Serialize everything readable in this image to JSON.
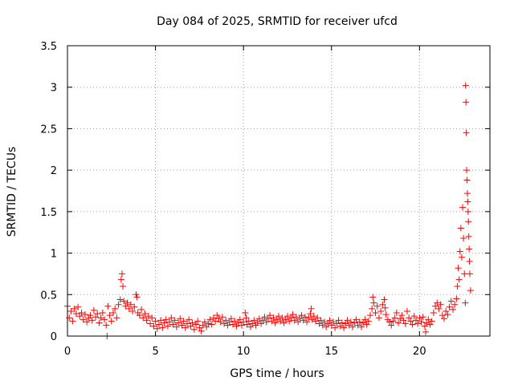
{
  "chart_data": {
    "type": "scatter",
    "title": "Day 084 of 2025, SRMTID for receiver ufcd",
    "xlabel": "GPS time / hours",
    "ylabel": "SRMTID / TECUs",
    "xlim": [
      0,
      24
    ],
    "ylim": [
      0,
      3.5
    ],
    "grid": true,
    "marker": "+",
    "marker_color": "#ff0000",
    "xticks": [
      0,
      5,
      10,
      15,
      20
    ],
    "xtick_labels": [
      "0",
      "5",
      "10",
      "15",
      "20"
    ],
    "yticks": [
      0,
      0.5,
      1,
      1.5,
      2,
      2.5,
      3,
      3.5
    ],
    "ytick_labels": [
      "0",
      "0.5",
      "1",
      "1.5",
      "2",
      "2.5",
      "3",
      "3.5"
    ],
    "series": [
      {
        "name": "SRMTID",
        "points": [
          [
            0.0,
            0.36
          ],
          [
            0.1,
            0.22
          ],
          [
            0.2,
            0.3
          ],
          [
            0.3,
            0.18
          ],
          [
            0.4,
            0.33
          ],
          [
            0.5,
            0.27
          ],
          [
            0.6,
            0.35
          ],
          [
            0.7,
            0.24
          ],
          [
            0.8,
            0.28
          ],
          [
            0.9,
            0.2
          ],
          [
            1.0,
            0.26
          ],
          [
            1.1,
            0.17
          ],
          [
            1.2,
            0.22
          ],
          [
            1.3,
            0.25
          ],
          [
            1.4,
            0.19
          ],
          [
            1.5,
            0.31
          ],
          [
            1.6,
            0.23
          ],
          [
            1.7,
            0.27
          ],
          [
            1.8,
            0.16
          ],
          [
            1.9,
            0.22
          ],
          [
            2.0,
            0.28
          ],
          [
            2.1,
            0.2
          ],
          [
            2.2,
            0.13
          ],
          [
            2.25,
            0.0
          ],
          [
            2.3,
            0.36
          ],
          [
            2.4,
            0.25
          ],
          [
            2.5,
            0.18
          ],
          [
            2.6,
            0.28
          ],
          [
            2.7,
            0.33
          ],
          [
            2.8,
            0.22
          ],
          [
            2.9,
            0.38
          ],
          [
            3.0,
            0.44
          ],
          [
            3.05,
            0.68
          ],
          [
            3.1,
            0.75
          ],
          [
            3.15,
            0.6
          ],
          [
            3.2,
            0.42
          ],
          [
            3.3,
            0.36
          ],
          [
            3.4,
            0.4
          ],
          [
            3.5,
            0.33
          ],
          [
            3.6,
            0.38
          ],
          [
            3.7,
            0.3
          ],
          [
            3.8,
            0.35
          ],
          [
            3.9,
            0.5
          ],
          [
            3.95,
            0.47
          ],
          [
            4.0,
            0.28
          ],
          [
            4.1,
            0.25
          ],
          [
            4.2,
            0.32
          ],
          [
            4.3,
            0.22
          ],
          [
            4.4,
            0.27
          ],
          [
            4.5,
            0.19
          ],
          [
            4.6,
            0.24
          ],
          [
            4.7,
            0.15
          ],
          [
            4.8,
            0.22
          ],
          [
            4.9,
            0.12
          ],
          [
            5.0,
            0.18
          ],
          [
            5.1,
            0.09
          ],
          [
            5.2,
            0.14
          ],
          [
            5.3,
            0.19
          ],
          [
            5.4,
            0.1
          ],
          [
            5.5,
            0.16
          ],
          [
            5.6,
            0.2
          ],
          [
            5.7,
            0.12
          ],
          [
            5.8,
            0.17
          ],
          [
            5.9,
            0.22
          ],
          [
            6.0,
            0.14
          ],
          [
            6.1,
            0.19
          ],
          [
            6.2,
            0.11
          ],
          [
            6.3,
            0.16
          ],
          [
            6.4,
            0.21
          ],
          [
            6.5,
            0.13
          ],
          [
            6.6,
            0.18
          ],
          [
            6.7,
            0.1
          ],
          [
            6.8,
            0.15
          ],
          [
            6.9,
            0.2
          ],
          [
            7.0,
            0.12
          ],
          [
            7.1,
            0.16
          ],
          [
            7.2,
            0.08
          ],
          [
            7.3,
            0.14
          ],
          [
            7.4,
            0.18
          ],
          [
            7.5,
            0.1
          ],
          [
            7.6,
            0.06
          ],
          [
            7.7,
            0.13
          ],
          [
            7.8,
            0.17
          ],
          [
            7.9,
            0.11
          ],
          [
            8.0,
            0.15
          ],
          [
            8.1,
            0.2
          ],
          [
            8.2,
            0.14
          ],
          [
            8.3,
            0.22
          ],
          [
            8.4,
            0.18
          ],
          [
            8.5,
            0.25
          ],
          [
            8.6,
            0.21
          ],
          [
            8.7,
            0.17
          ],
          [
            8.8,
            0.23
          ],
          [
            8.9,
            0.15
          ],
          [
            9.0,
            0.19
          ],
          [
            9.1,
            0.13
          ],
          [
            9.2,
            0.17
          ],
          [
            9.3,
            0.21
          ],
          [
            9.4,
            0.14
          ],
          [
            9.5,
            0.18
          ],
          [
            9.6,
            0.12
          ],
          [
            9.7,
            0.16
          ],
          [
            9.8,
            0.2
          ],
          [
            9.9,
            0.13
          ],
          [
            10.0,
            0.17
          ],
          [
            10.1,
            0.28
          ],
          [
            10.15,
            0.22
          ],
          [
            10.2,
            0.14
          ],
          [
            10.3,
            0.18
          ],
          [
            10.4,
            0.11
          ],
          [
            10.5,
            0.15
          ],
          [
            10.6,
            0.19
          ],
          [
            10.7,
            0.13
          ],
          [
            10.8,
            0.17
          ],
          [
            10.9,
            0.21
          ],
          [
            11.0,
            0.15
          ],
          [
            11.1,
            0.19
          ],
          [
            11.2,
            0.23
          ],
          [
            11.3,
            0.17
          ],
          [
            11.4,
            0.21
          ],
          [
            11.5,
            0.25
          ],
          [
            11.6,
            0.18
          ],
          [
            11.7,
            0.22
          ],
          [
            11.8,
            0.16
          ],
          [
            11.9,
            0.2
          ],
          [
            12.0,
            0.24
          ],
          [
            12.1,
            0.18
          ],
          [
            12.2,
            0.22
          ],
          [
            12.3,
            0.16
          ],
          [
            12.4,
            0.2
          ],
          [
            12.5,
            0.24
          ],
          [
            12.6,
            0.18
          ],
          [
            12.7,
            0.22
          ],
          [
            12.8,
            0.26
          ],
          [
            12.9,
            0.19
          ],
          [
            13.0,
            0.23
          ],
          [
            13.1,
            0.17
          ],
          [
            13.2,
            0.21
          ],
          [
            13.3,
            0.25
          ],
          [
            13.4,
            0.19
          ],
          [
            13.5,
            0.23
          ],
          [
            13.6,
            0.17
          ],
          [
            13.7,
            0.22
          ],
          [
            13.8,
            0.27
          ],
          [
            13.85,
            0.33
          ],
          [
            13.9,
            0.2
          ],
          [
            14.0,
            0.24
          ],
          [
            14.1,
            0.18
          ],
          [
            14.2,
            0.22
          ],
          [
            14.3,
            0.15
          ],
          [
            14.4,
            0.19
          ],
          [
            14.5,
            0.13
          ],
          [
            14.6,
            0.17
          ],
          [
            14.7,
            0.11
          ],
          [
            14.8,
            0.15
          ],
          [
            14.9,
            0.19
          ],
          [
            15.0,
            0.13
          ],
          [
            15.1,
            0.17
          ],
          [
            15.2,
            0.1
          ],
          [
            15.3,
            0.15
          ],
          [
            15.4,
            0.19
          ],
          [
            15.5,
            0.12
          ],
          [
            15.6,
            0.16
          ],
          [
            15.7,
            0.1
          ],
          [
            15.8,
            0.15
          ],
          [
            15.9,
            0.19
          ],
          [
            16.0,
            0.13
          ],
          [
            16.1,
            0.17
          ],
          [
            16.2,
            0.11
          ],
          [
            16.3,
            0.16
          ],
          [
            16.4,
            0.2
          ],
          [
            16.5,
            0.13
          ],
          [
            16.6,
            0.17
          ],
          [
            16.7,
            0.11
          ],
          [
            16.8,
            0.16
          ],
          [
            16.9,
            0.2
          ],
          [
            17.0,
            0.14
          ],
          [
            17.1,
            0.18
          ],
          [
            17.2,
            0.25
          ],
          [
            17.3,
            0.33
          ],
          [
            17.35,
            0.47
          ],
          [
            17.4,
            0.4
          ],
          [
            17.5,
            0.28
          ],
          [
            17.6,
            0.36
          ],
          [
            17.7,
            0.22
          ],
          [
            17.8,
            0.3
          ],
          [
            17.9,
            0.38
          ],
          [
            18.0,
            0.44
          ],
          [
            18.05,
            0.34
          ],
          [
            18.1,
            0.26
          ],
          [
            18.2,
            0.2
          ],
          [
            18.3,
            0.17
          ],
          [
            18.4,
            0.13
          ],
          [
            18.5,
            0.18
          ],
          [
            18.6,
            0.22
          ],
          [
            18.7,
            0.28
          ],
          [
            18.8,
            0.16
          ],
          [
            18.9,
            0.21
          ],
          [
            19.0,
            0.25
          ],
          [
            19.1,
            0.19
          ],
          [
            19.2,
            0.15
          ],
          [
            19.3,
            0.3
          ],
          [
            19.4,
            0.22
          ],
          [
            19.5,
            0.18
          ],
          [
            19.6,
            0.14
          ],
          [
            19.7,
            0.24
          ],
          [
            19.8,
            0.19
          ],
          [
            19.9,
            0.15
          ],
          [
            20.0,
            0.22
          ],
          [
            20.1,
            0.17
          ],
          [
            20.2,
            0.23
          ],
          [
            20.3,
            0.12
          ],
          [
            20.35,
            0.05
          ],
          [
            20.4,
            0.16
          ],
          [
            20.5,
            0.2
          ],
          [
            20.6,
            0.14
          ],
          [
            20.7,
            0.18
          ],
          [
            20.8,
            0.28
          ],
          [
            20.9,
            0.36
          ],
          [
            21.0,
            0.4
          ],
          [
            21.1,
            0.33
          ],
          [
            21.2,
            0.38
          ],
          [
            21.3,
            0.25
          ],
          [
            21.4,
            0.21
          ],
          [
            21.5,
            0.3
          ],
          [
            21.6,
            0.26
          ],
          [
            21.7,
            0.35
          ],
          [
            21.8,
            0.42
          ],
          [
            21.9,
            0.32
          ],
          [
            22.0,
            0.38
          ],
          [
            22.1,
            0.45
          ],
          [
            22.15,
            0.6
          ],
          [
            22.2,
            0.82
          ],
          [
            22.25,
            0.68
          ],
          [
            22.3,
            1.02
          ],
          [
            22.35,
            1.3
          ],
          [
            22.4,
            0.95
          ],
          [
            22.45,
            1.55
          ],
          [
            22.5,
            1.18
          ],
          [
            22.55,
            0.75
          ],
          [
            22.6,
            0.4
          ],
          [
            22.62,
            3.02
          ],
          [
            22.64,
            2.82
          ],
          [
            22.66,
            2.45
          ],
          [
            22.68,
            2.0
          ],
          [
            22.7,
            1.88
          ],
          [
            22.72,
            1.72
          ],
          [
            22.74,
            1.62
          ],
          [
            22.76,
            1.5
          ],
          [
            22.78,
            1.38
          ],
          [
            22.8,
            1.2
          ],
          [
            22.82,
            1.05
          ],
          [
            22.84,
            0.9
          ],
          [
            22.86,
            0.75
          ],
          [
            22.9,
            0.55
          ]
        ]
      }
    ]
  }
}
